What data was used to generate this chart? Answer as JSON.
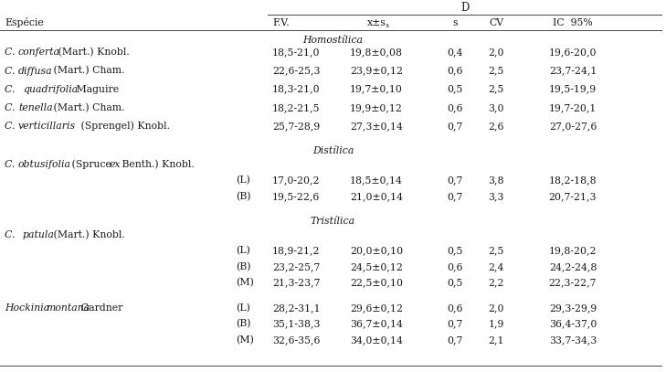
{
  "bg_color": "#ffffff",
  "text_color": "#1a1a1a",
  "line_color": "#4a4a4a",
  "font_size": 7.8,
  "rows": [
    {
      "species_parts": [
        [
          "C. ",
          true
        ],
        [
          "conferta",
          true
        ],
        [
          " (Mart.) Knobl.",
          false
        ]
      ],
      "morph": "",
      "fv": "18,5-21,0",
      "mean": "19,8±0,08",
      "s": "0,4",
      "cv": "2,0",
      "ic": "19,6-20,0",
      "type": "data"
    },
    {
      "species_parts": [
        [
          "C. ",
          true
        ],
        [
          "diffusa",
          true
        ],
        [
          " (Mart.) Cham.",
          false
        ]
      ],
      "morph": "",
      "fv": "22,6-25,3",
      "mean": "23,9±0,12",
      "s": "0,6",
      "cv": "2,5",
      "ic": "23,7-24,1",
      "type": "data"
    },
    {
      "species_parts": [
        [
          "C.  ",
          true
        ],
        [
          "quadrifolia",
          true
        ],
        [
          " Maguire",
          false
        ]
      ],
      "morph": "",
      "fv": "18,3-21,0",
      "mean": "19,7±0,10",
      "s": "0,5",
      "cv": "2,5",
      "ic": "19,5-19,9",
      "type": "data"
    },
    {
      "species_parts": [
        [
          "C. ",
          true
        ],
        [
          "tenella",
          true
        ],
        [
          " (Mart.) Cham.",
          false
        ]
      ],
      "morph": "",
      "fv": "18,2-21,5",
      "mean": "19,9±0,12",
      "s": "0,6",
      "cv": "3,0",
      "ic": "19,7-20,1",
      "type": "data"
    },
    {
      "species_parts": [
        [
          "C. ",
          true
        ],
        [
          "verticillaris",
          true
        ],
        [
          " (Sprengel) Knobl.",
          false
        ]
      ],
      "morph": "",
      "fv": "25,7-28,9",
      "mean": "27,3±0,14",
      "s": "0,7",
      "cv": "2,6",
      "ic": "27,0-27,6",
      "type": "data"
    },
    {
      "species_parts": [
        [
          "C. ",
          true
        ],
        [
          "obtusifolia",
          true
        ],
        [
          " (Spruce ",
          false
        ],
        [
          "ex",
          true
        ],
        [
          " Benth.) Knobl.",
          false
        ]
      ],
      "morph": "",
      "fv": "",
      "mean": "",
      "s": "",
      "cv": "",
      "ic": "",
      "type": "species_only"
    },
    {
      "species_parts": [],
      "morph": "(L)",
      "fv": "17,0-20,2",
      "mean": "18,5±0,14",
      "s": "0,7",
      "cv": "3,8",
      "ic": "18,2-18,8",
      "type": "morph"
    },
    {
      "species_parts": [],
      "morph": "(B)",
      "fv": "19,5-22,6",
      "mean": "21,0±0,14",
      "s": "0,7",
      "cv": "3,3",
      "ic": "20,7-21,3",
      "type": "morph"
    },
    {
      "species_parts": [
        [
          "C.  ",
          true
        ],
        [
          "patula",
          true
        ],
        [
          " (Mart.) Knobl.",
          false
        ]
      ],
      "morph": "",
      "fv": "",
      "mean": "",
      "s": "",
      "cv": "",
      "ic": "",
      "type": "species_only"
    },
    {
      "species_parts": [],
      "morph": "(L)",
      "fv": "18,9-21,2",
      "mean": "20,0±0,10",
      "s": "0,5",
      "cv": "2,5",
      "ic": "19,8-20,2",
      "type": "morph"
    },
    {
      "species_parts": [],
      "morph": "(B)",
      "fv": "23,2-25,7",
      "mean": "24,5±0,12",
      "s": "0,6",
      "cv": "2,4",
      "ic": "24,2-24,8",
      "type": "morph"
    },
    {
      "species_parts": [],
      "morph": "(M)",
      "fv": "21,3-23,7",
      "mean": "22,5±0,10",
      "s": "0,5",
      "cv": "2,2",
      "ic": "22,3-22,7",
      "type": "morph"
    },
    {
      "species_parts": [
        [
          "Hockinia ",
          true
        ],
        [
          "montana",
          true
        ],
        [
          " Gardner",
          false
        ]
      ],
      "morph": "(L)",
      "fv": "28,2-31,1",
      "mean": "29,6±0,12",
      "s": "0,6",
      "cv": "2,0",
      "ic": "29,3-29,9",
      "type": "hockinia"
    },
    {
      "species_parts": [],
      "morph": "(B)",
      "fv": "35,1-38,3",
      "mean": "36,7±0,14",
      "s": "0,7",
      "cv": "1,9",
      "ic": "36,4-37,0",
      "type": "morph"
    },
    {
      "species_parts": [],
      "morph": "(M)",
      "fv": "32,6-35,6",
      "mean": "34,0±0,14",
      "s": "0,7",
      "cv": "2,1",
      "ic": "33,7-34,3",
      "type": "morph"
    }
  ],
  "sections": [
    {
      "label": "Homostílica",
      "before_row": 0
    },
    {
      "label": "Distílica",
      "before_row": 5
    },
    {
      "label": "Tristílica",
      "before_row": 8
    }
  ]
}
